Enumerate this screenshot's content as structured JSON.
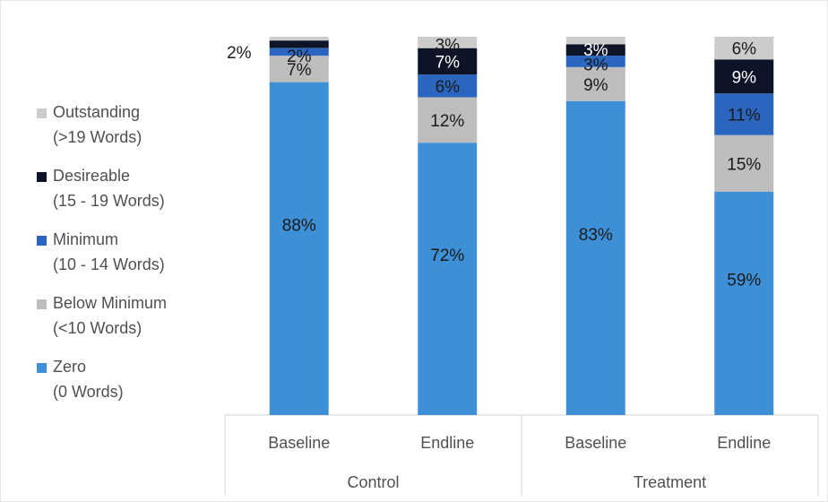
{
  "chart_data": {
    "type": "bar",
    "stacked": true,
    "title": "",
    "xlabel": "",
    "ylabel": "",
    "ylim": [
      0,
      100
    ],
    "categories": [
      "Baseline",
      "Endline",
      "Baseline",
      "Endline"
    ],
    "groups": [
      {
        "label": "Control",
        "span": [
          0,
          1
        ]
      },
      {
        "label": "Treatment",
        "span": [
          2,
          3
        ]
      }
    ],
    "series": [
      {
        "name": "Zero",
        "name_line2": "(0 Words)",
        "color": "#3d8fd6",
        "values": [
          88,
          72,
          83,
          59
        ],
        "labels": [
          "88%",
          "72%",
          "83%",
          "59%"
        ]
      },
      {
        "name": "Below Minimum",
        "name_line2": "(<10 Words)",
        "color": "#bdbdbd",
        "values": [
          7,
          12,
          9,
          15
        ],
        "labels": [
          "7%",
          "12%",
          "9%",
          "15%"
        ]
      },
      {
        "name": "Minimum",
        "name_line2": "(10 - 14 Words)",
        "color": "#2a66bf",
        "values": [
          2,
          6,
          3,
          11
        ],
        "labels": [
          "2%",
          "6%",
          "3%",
          "11%"
        ]
      },
      {
        "name": "Desireable",
        "name_line2": "(15 - 19 Words)",
        "color": "#0e1428",
        "values": [
          2,
          7,
          3,
          9
        ],
        "labels": [
          "2%",
          "7%",
          "3%",
          "9%"
        ]
      },
      {
        "name": "Outstanding",
        "name_line2": "(>19 Words)",
        "color": "#cccccc",
        "values": [
          1,
          3,
          2,
          6
        ],
        "labels": [
          "",
          "3%",
          "",
          "6%"
        ]
      }
    ],
    "legend_position": "left",
    "legend_order": [
      "Outstanding",
      "Desireable",
      "Minimum",
      "Below Minimum",
      "Zero"
    ],
    "grid": false
  }
}
